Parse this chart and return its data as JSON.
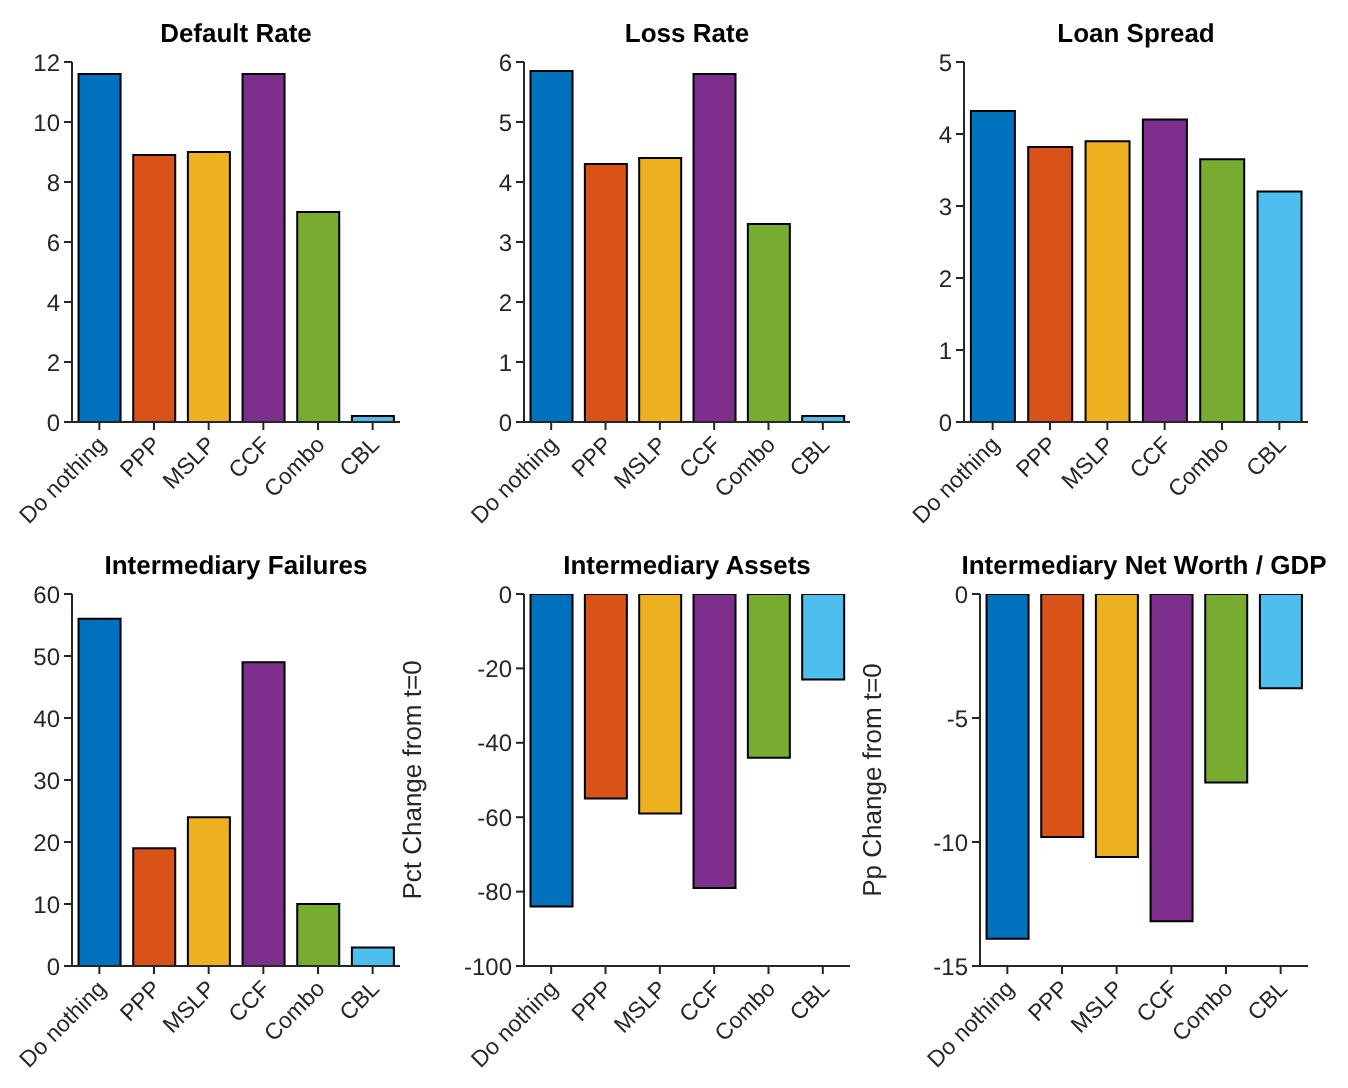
{
  "chart_data": [
    {
      "type": "bar",
      "title": "Default Rate",
      "categories": [
        "Do nothing",
        "PPP",
        "MSLP",
        "CCF",
        "Combo",
        "CBL"
      ],
      "values": [
        11.6,
        8.9,
        9.0,
        11.6,
        7.0,
        0.2
      ],
      "colors": [
        "#0072bd",
        "#d95319",
        "#edb120",
        "#7e2f8e",
        "#77ac30",
        "#4dbeee"
      ],
      "ylim": [
        0,
        12
      ],
      "yticks": [
        0,
        2,
        4,
        6,
        8,
        10,
        12
      ]
    },
    {
      "type": "bar",
      "title": "Loss Rate",
      "categories": [
        "Do nothing",
        "PPP",
        "MSLP",
        "CCF",
        "Combo",
        "CBL"
      ],
      "values": [
        5.85,
        4.3,
        4.4,
        5.8,
        3.3,
        0.1
      ],
      "colors": [
        "#0072bd",
        "#d95319",
        "#edb120",
        "#7e2f8e",
        "#77ac30",
        "#4dbeee"
      ],
      "ylim": [
        0,
        6
      ],
      "yticks": [
        0,
        1,
        2,
        3,
        4,
        5,
        6
      ]
    },
    {
      "type": "bar",
      "title": "Loan Spread",
      "categories": [
        "Do nothing",
        "PPP",
        "MSLP",
        "CCF",
        "Combo",
        "CBL"
      ],
      "values": [
        4.32,
        3.82,
        3.9,
        4.2,
        3.65,
        3.2
      ],
      "colors": [
        "#0072bd",
        "#d95319",
        "#edb120",
        "#7e2f8e",
        "#77ac30",
        "#4dbeee"
      ],
      "ylim": [
        0,
        5
      ],
      "yticks": [
        0,
        1,
        2,
        3,
        4,
        5
      ]
    },
    {
      "type": "bar",
      "title": "Intermediary Failures",
      "categories": [
        "Do nothing",
        "PPP",
        "MSLP",
        "CCF",
        "Combo",
        "CBL"
      ],
      "values": [
        56,
        19,
        24,
        49,
        10,
        3
      ],
      "colors": [
        "#0072bd",
        "#d95319",
        "#edb120",
        "#7e2f8e",
        "#77ac30",
        "#4dbeee"
      ],
      "ylim": [
        0,
        60
      ],
      "yticks": [
        0,
        10,
        20,
        30,
        40,
        50,
        60
      ]
    },
    {
      "type": "bar",
      "title": "Intermediary Assets",
      "ylabel": "Pct Change from t=0",
      "categories": [
        "Do nothing",
        "PPP",
        "MSLP",
        "CCF",
        "Combo",
        "CBL"
      ],
      "values": [
        -84,
        -55,
        -59,
        -79,
        -44,
        -23
      ],
      "colors": [
        "#0072bd",
        "#d95319",
        "#edb120",
        "#7e2f8e",
        "#77ac30",
        "#4dbeee"
      ],
      "ylim": [
        -100,
        0
      ],
      "yticks": [
        -100,
        -80,
        -60,
        -40,
        -20,
        0
      ]
    },
    {
      "type": "bar",
      "title": "Intermediary Net Worth / GDP",
      "ylabel": "Pp Change from t=0",
      "categories": [
        "Do nothing",
        "PPP",
        "MSLP",
        "CCF",
        "Combo",
        "CBL"
      ],
      "values": [
        -13.9,
        -9.8,
        -10.6,
        -13.2,
        -7.6,
        -3.8
      ],
      "colors": [
        "#0072bd",
        "#d95319",
        "#edb120",
        "#7e2f8e",
        "#77ac30",
        "#4dbeee"
      ],
      "ylim": [
        -15,
        0
      ],
      "yticks": [
        -15,
        -10,
        -5,
        0
      ]
    }
  ]
}
